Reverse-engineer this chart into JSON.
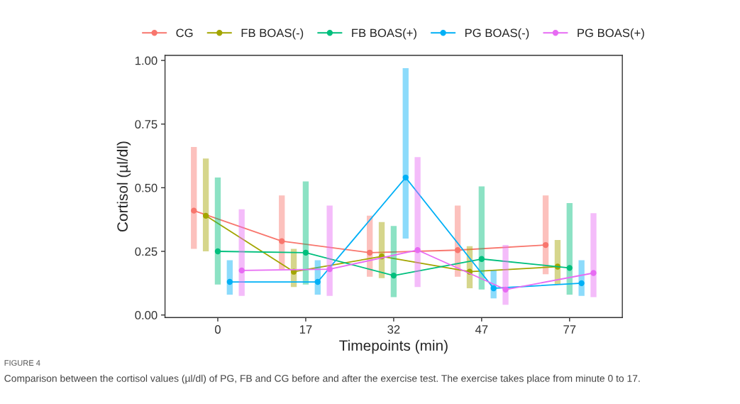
{
  "chart_data": {
    "type": "line",
    "categories": [
      "0",
      "17",
      "32",
      "47",
      "77"
    ],
    "xlabel": "Timepoints (min)",
    "ylabel": "Cortisol (µl/dl)",
    "ylim": [
      -0.01,
      1.02
    ],
    "yticks": [
      {
        "value": 0,
        "label": "0.00"
      },
      {
        "value": 0.25,
        "label": "0.25"
      },
      {
        "value": 0.5,
        "label": "0.50"
      },
      {
        "value": 0.75,
        "label": "0.75"
      },
      {
        "value": 1,
        "label": "1.00"
      }
    ],
    "grid": false,
    "legend": "top",
    "marker": "circle",
    "line_style": "solid",
    "series": [
      {
        "name": "CG",
        "color": "#f8766d",
        "values": [
          0.41,
          0.29,
          0.245,
          0.255,
          0.275
        ],
        "errors": [
          [
            0.26,
            0.66
          ],
          [
            0.18,
            0.47
          ],
          [
            0.15,
            0.39
          ],
          [
            0.15,
            0.43
          ],
          [
            0.16,
            0.47
          ]
        ]
      },
      {
        "name": "FB BOAS(-)",
        "color": "#a3a500",
        "values": [
          0.39,
          0.17,
          0.23,
          0.17,
          0.19
        ],
        "errors": [
          [
            0.25,
            0.615
          ],
          [
            0.11,
            0.26
          ],
          [
            0.145,
            0.365
          ],
          [
            0.105,
            0.27
          ],
          [
            0.12,
            0.295
          ]
        ]
      },
      {
        "name": "FB BOAS(+)",
        "color": "#00bf7d",
        "values": [
          0.25,
          0.245,
          0.155,
          0.22,
          0.185
        ],
        "errors": [
          [
            0.12,
            0.54
          ],
          [
            0.12,
            0.525
          ],
          [
            0.07,
            0.35
          ],
          [
            0.1,
            0.505
          ],
          [
            0.08,
            0.44
          ]
        ]
      },
      {
        "name": "PG BOAS(-)",
        "color": "#00b0f6",
        "values": [
          0.13,
          0.13,
          0.54,
          0.105,
          0.125
        ],
        "errors": [
          [
            0.08,
            0.215
          ],
          [
            0.08,
            0.215
          ],
          [
            0.3,
            0.97
          ],
          [
            0.065,
            0.175
          ],
          [
            0.075,
            0.215
          ]
        ]
      },
      {
        "name": "PG BOAS(+)",
        "color": "#e76bf3",
        "values": [
          0.175,
          0.18,
          0.255,
          0.1,
          0.165
        ],
        "errors": [
          [
            0.075,
            0.415
          ],
          [
            0.075,
            0.43
          ],
          [
            0.11,
            0.62
          ],
          [
            0.04,
            0.275
          ],
          [
            0.07,
            0.4
          ]
        ]
      }
    ],
    "annotations": [
      "FIGURE 4",
      "Comparison between the cortisol values (µl/dl) of PG, FB and CG before and after the exercise test. The exercise takes place from minute 0 to 17."
    ]
  }
}
